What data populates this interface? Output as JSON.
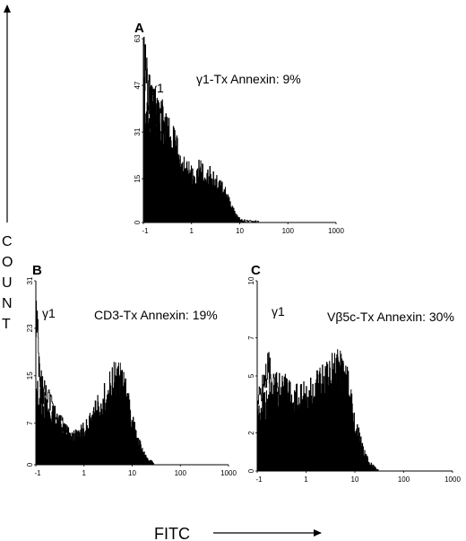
{
  "figure": {
    "y_axis_label": "COUNT",
    "x_axis_label": "FITC"
  },
  "chart_data": [
    {
      "panel": "A",
      "type": "area",
      "x_scale": "log",
      "x_ticks": [
        "-1",
        "1",
        "10",
        "100",
        "1000"
      ],
      "y_ticks": [
        "0",
        "15",
        "31",
        "47",
        "63"
      ],
      "ylim": [
        0,
        63
      ],
      "series_label": "γ1",
      "annotation": "γ1-Tx Annexin: 9%",
      "series": [
        {
          "name": "γ1",
          "style": "outline",
          "x": [
            0.1,
            0.13,
            0.16,
            0.2,
            0.25,
            0.3,
            0.35,
            0.4,
            0.5,
            0.6,
            0.7,
            0.8,
            1,
            1.5,
            2,
            3,
            5,
            8,
            12,
            18,
            25
          ],
          "values": [
            55,
            42,
            38,
            40,
            35,
            30,
            25,
            20,
            14,
            10,
            7,
            5,
            4,
            3,
            2,
            2,
            1,
            0.8,
            0.5,
            0.3,
            0
          ]
        },
        {
          "name": "Annexin",
          "style": "filled",
          "x": [
            0.1,
            0.15,
            0.2,
            0.3,
            0.4,
            0.5,
            0.6,
            0.8,
            1,
            1.5,
            2,
            3,
            4,
            5,
            6,
            8,
            10,
            12
          ],
          "values": [
            45,
            38,
            36,
            32,
            28,
            24,
            20,
            18,
            16,
            18,
            17,
            14,
            12,
            10,
            7,
            3,
            1,
            0
          ]
        }
      ]
    },
    {
      "panel": "B",
      "type": "area",
      "x_scale": "log",
      "x_ticks": [
        "-1",
        "1",
        "10",
        "100",
        "1000"
      ],
      "y_ticks": [
        "0",
        "7",
        "15",
        "23",
        "31"
      ],
      "ylim": [
        0,
        31
      ],
      "series_label": "γ1",
      "annotation": "CD3-Tx Annexin: 19%",
      "series": [
        {
          "name": "γ1",
          "style": "outline",
          "x": [
            0.1,
            0.12,
            0.15,
            0.2,
            0.3,
            0.4,
            0.5,
            0.7,
            1,
            1.5,
            2,
            3,
            5,
            8,
            12,
            20,
            30
          ],
          "values": [
            26,
            14,
            12,
            10,
            8,
            6,
            5,
            3,
            2,
            1.5,
            1,
            1,
            0.5,
            0.3,
            0.2,
            0,
            0
          ]
        },
        {
          "name": "Annexin",
          "style": "filled",
          "x": [
            0.1,
            0.15,
            0.2,
            0.3,
            0.4,
            0.5,
            0.7,
            1,
            1.5,
            2,
            3,
            4,
            5,
            6,
            8,
            10,
            15,
            20,
            30
          ],
          "values": [
            12,
            10,
            9,
            7,
            6,
            5,
            5,
            6,
            8,
            10,
            12,
            14,
            15,
            14,
            11,
            7,
            3,
            1,
            0
          ]
        }
      ]
    },
    {
      "panel": "C",
      "type": "area",
      "x_scale": "log",
      "x_ticks": [
        "-1",
        "1",
        "10",
        "100",
        "1000"
      ],
      "y_ticks": [
        "0",
        "2",
        "5",
        "7",
        "10"
      ],
      "ylim": [
        0,
        10
      ],
      "series_label": "γ1",
      "annotation": "Vβ5c-Tx Annexin: 30%",
      "series": [
        {
          "name": "γ1",
          "style": "outline",
          "x": [
            0.1,
            0.13,
            0.16,
            0.2,
            0.3,
            0.4,
            0.5,
            0.7,
            1,
            1.5,
            2,
            3,
            5,
            8,
            12,
            20,
            30
          ],
          "values": [
            3.5,
            4.5,
            5.5,
            4.5,
            3.5,
            3,
            2.5,
            2,
            1.5,
            1,
            0.8,
            0.5,
            0.3,
            0.2,
            0.1,
            0,
            0
          ]
        },
        {
          "name": "Annexin",
          "style": "filled",
          "x": [
            0.1,
            0.15,
            0.2,
            0.3,
            0.4,
            0.5,
            0.7,
            1,
            1.5,
            2,
            3,
            4,
            5,
            6,
            8,
            10,
            15,
            20,
            30
          ],
          "values": [
            3,
            3.5,
            4,
            4.5,
            4.2,
            4,
            4,
            4,
            4.3,
            4.5,
            5,
            5.2,
            5.5,
            5,
            4,
            2.5,
            1,
            0.4,
            0
          ]
        }
      ]
    }
  ]
}
